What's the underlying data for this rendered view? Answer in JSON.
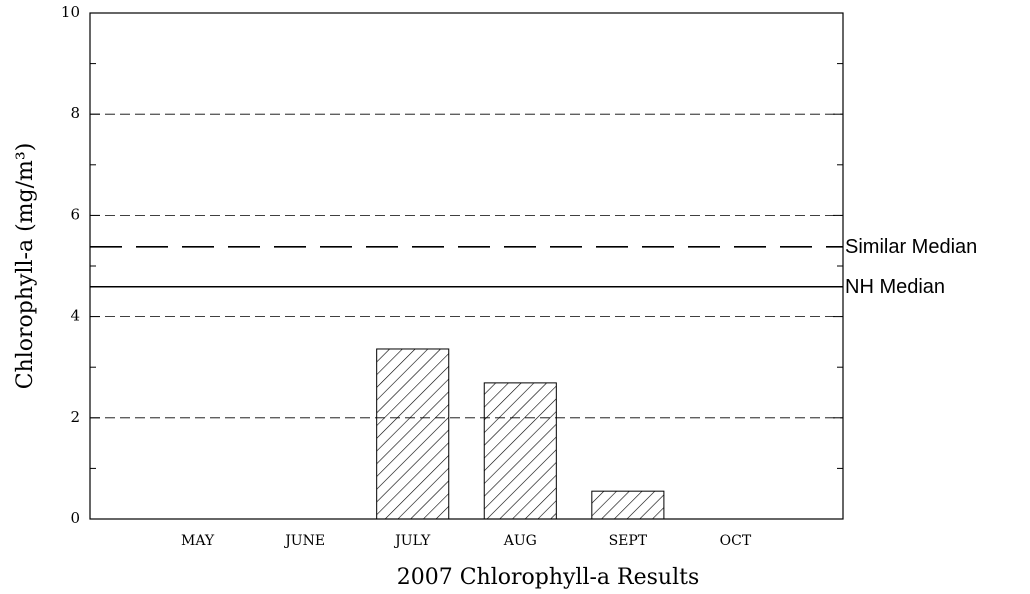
{
  "chart_data": {
    "type": "bar",
    "xlabel": "2007 Chlorophyll-a Results",
    "ylabel": "Chlorophyll-a  (mg/m³)",
    "categories": [
      "MAY",
      "JUNE",
      "JULY",
      "AUG",
      "SEPT",
      "OCT"
    ],
    "values": [
      null,
      null,
      3.36,
      2.69,
      0.55,
      null
    ],
    "color": "#000000",
    "ylim": [
      0,
      10
    ],
    "yticks": [
      0,
      2,
      4,
      6,
      8,
      10
    ],
    "minor_yticks": [
      1,
      3,
      5,
      7,
      9
    ],
    "grid": true,
    "reference_lines": [
      {
        "name": "Similar Median",
        "value": 5.38,
        "style": "dashed"
      },
      {
        "name": "NH Median",
        "value": 4.59,
        "style": "solid"
      }
    ]
  }
}
